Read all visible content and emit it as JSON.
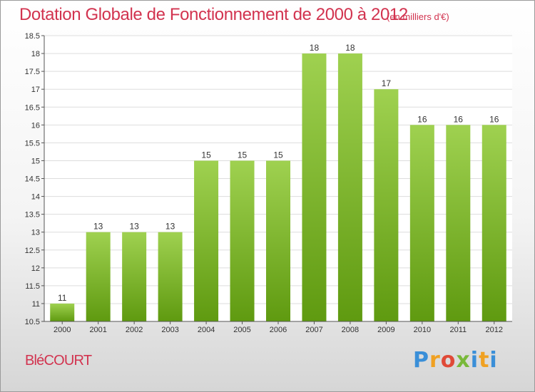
{
  "header": {
    "title": "Dotation Globale de Fonctionnement de 2000 à 2012",
    "unit": "(en milliers d'€)"
  },
  "footer": {
    "place": "BléCOURT",
    "logo": [
      "P",
      "r",
      "o",
      "x",
      "i",
      "t",
      "i"
    ]
  },
  "chart_data": {
    "type": "bar",
    "title": "Dotation Globale de Fonctionnement de 2000 à 2012",
    "subtitle": "(en milliers d'€)",
    "xlabel": "",
    "ylabel": "",
    "categories": [
      "2000",
      "2001",
      "2002",
      "2003",
      "2004",
      "2005",
      "2006",
      "2007",
      "2008",
      "2009",
      "2010",
      "2011",
      "2012"
    ],
    "values": [
      11,
      13,
      13,
      13,
      15,
      15,
      15,
      18,
      18,
      17,
      16,
      16,
      16
    ],
    "data_labels": [
      "11",
      "13",
      "13",
      "13",
      "15",
      "15",
      "15",
      "18",
      "18",
      "17",
      "16",
      "16",
      "16"
    ],
    "ylim": [
      10.5,
      18.5
    ],
    "yticks": [
      10.5,
      11,
      11.5,
      12,
      12.5,
      13,
      13.5,
      14,
      14.5,
      15,
      15.5,
      16,
      16.5,
      17,
      17.5,
      18,
      18.5
    ],
    "grid": true,
    "legend": "none",
    "colors": {
      "bar_top": "#9fd150",
      "bar_bottom": "#5f9a10",
      "grid": "#dddddd",
      "title": "#d2334f"
    }
  }
}
